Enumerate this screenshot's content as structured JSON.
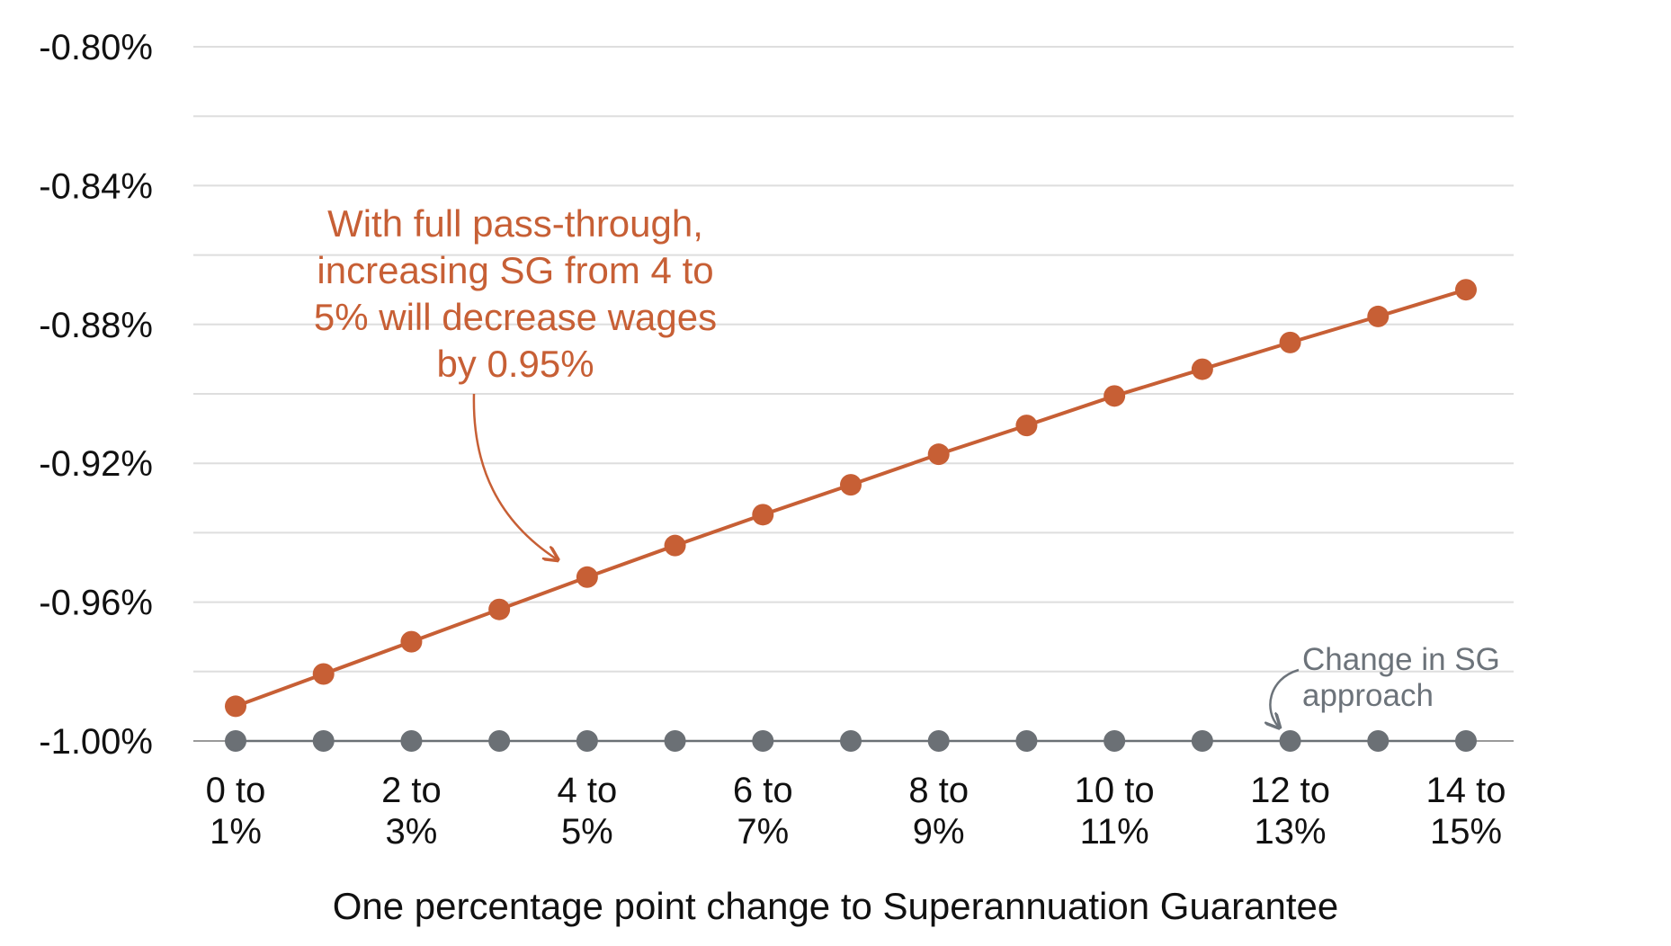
{
  "chart_data": {
    "type": "line",
    "categories": [
      [
        "0 to",
        "1%"
      ],
      [
        "",
        ""
      ],
      [
        "2 to",
        "3%"
      ],
      [
        "",
        ""
      ],
      [
        "4 to",
        "5%"
      ],
      [
        "",
        ""
      ],
      [
        "6 to",
        "7%"
      ],
      [
        "",
        ""
      ],
      [
        "8 to",
        "9%"
      ],
      [
        "",
        ""
      ],
      [
        "10 to",
        "11%"
      ],
      [
        "",
        ""
      ],
      [
        "12 to",
        "13%"
      ],
      [
        "",
        ""
      ],
      [
        "14 to",
        "15%"
      ]
    ],
    "series": [
      {
        "color": "#c75f35",
        "values": [
          -0.99,
          -0.9807,
          -0.9714,
          -0.9621,
          -0.9528,
          -0.9437,
          -0.9348,
          -0.9262,
          -0.9174,
          -0.9091,
          -0.9006,
          -0.8929,
          -0.8852,
          -0.8777,
          -0.87
        ]
      },
      {
        "color": "#6b7075",
        "values": [
          -1.0,
          -1.0,
          -1.0,
          -1.0,
          -1.0,
          -1.0,
          -1.0,
          -1.0,
          -1.0,
          -1.0,
          -1.0,
          -1.0,
          -1.0,
          -1.0,
          -1.0
        ]
      }
    ],
    "yticks": [
      {
        "value": -1.0,
        "label": "-1.00%"
      },
      {
        "value": -0.96,
        "label": "-0.96%"
      },
      {
        "value": -0.92,
        "label": "-0.92%"
      },
      {
        "value": -0.88,
        "label": "-0.88%"
      },
      {
        "value": -0.84,
        "label": "-0.84%"
      },
      {
        "value": -0.8,
        "label": "-0.80%"
      }
    ],
    "ylim": [
      -1.0,
      -0.8
    ],
    "minor_grid_step": 0.02,
    "grid": true,
    "xlabel": "One percentage point change to Superannuation Guarantee",
    "annotations": [
      {
        "lines": [
          "With full pass-through,",
          "increasing SG from 4 to",
          "5% will decrease wages",
          "by 0.95%"
        ],
        "color": "#c75f35",
        "target_index": 4,
        "series_index": 0
      },
      {
        "lines": [
          "Change in SG",
          "approach"
        ],
        "color": "#6c737a",
        "target_index": 12,
        "series_index": 1
      }
    ]
  }
}
